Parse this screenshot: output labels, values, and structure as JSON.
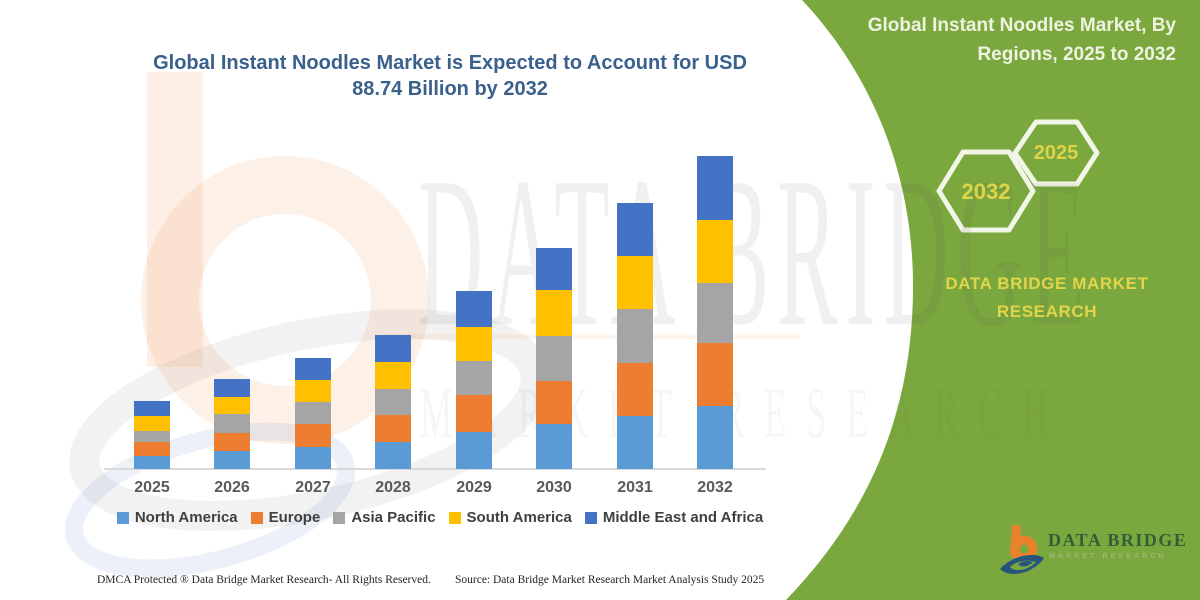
{
  "header": {
    "main_title": "Global Instant Noodles Market is Expected to Account for USD 88.74 Billion by 2032"
  },
  "panel": {
    "title": "Global Instant Noodles Market, By Regions, 2025 to 2032",
    "hexagon_large_label": "2032",
    "hexagon_small_label": "2025",
    "brand_text": "DATA BRIDGE MARKET RESEARCH",
    "colors": {
      "panel_green": "#7AA83E",
      "hexagon_stroke": "#F2F6E6",
      "accent_yellow": "#DFD348"
    }
  },
  "chart_data": {
    "type": "bar",
    "stacked": true,
    "title": "Global Instant Noodles Market is Expected to Account for USD 88.74 Billion by 2032",
    "value_unit": "USD Billion",
    "y_axis_visible": false,
    "grid": false,
    "legend_position": "bottom",
    "categories": [
      "2025",
      "2026",
      "2027",
      "2028",
      "2029",
      "2030",
      "2031",
      "2032"
    ],
    "series": [
      {
        "name": "North America",
        "color": "#5B9BD5",
        "values": [
          3.7,
          5.1,
          6.3,
          7.7,
          10.5,
          12.8,
          15.0,
          17.9
        ]
      },
      {
        "name": "Europe",
        "color": "#ED7D31",
        "values": [
          4.0,
          5.1,
          6.4,
          7.6,
          10.5,
          12.2,
          15.0,
          17.9
        ]
      },
      {
        "name": "Asia Pacific",
        "color": "#A5A5A5",
        "values": [
          3.1,
          5.4,
          6.3,
          7.5,
          9.6,
          12.8,
          15.3,
          17.0
        ]
      },
      {
        "name": "South America",
        "color": "#FFC000",
        "values": [
          4.3,
          4.8,
          6.3,
          7.6,
          9.6,
          13.0,
          15.0,
          17.8
        ]
      },
      {
        "name": "Middle East and Africa",
        "color": "#4472C4",
        "values": [
          4.2,
          5.1,
          6.2,
          7.6,
          10.2,
          11.9,
          15.0,
          18.1
        ]
      }
    ],
    "totals": [
      19.3,
      25.5,
      31.5,
      38.0,
      50.4,
      62.7,
      75.3,
      88.7
    ],
    "highlight_value": "USD 88.74 Billion by 2032"
  },
  "watermark": {
    "line1": "DATA BRIDGE",
    "line2": "MARKET RESEARCH"
  },
  "footer": {
    "dmca": "DMCA Protected ® Data Bridge Market Research-  All Rights Reserved.",
    "source": "Source: Data Bridge Market Research  Market Analysis Study 2025"
  },
  "logo": {
    "title": "DATA BRIDGE",
    "subtitle": "MARKET RESEARCH"
  }
}
